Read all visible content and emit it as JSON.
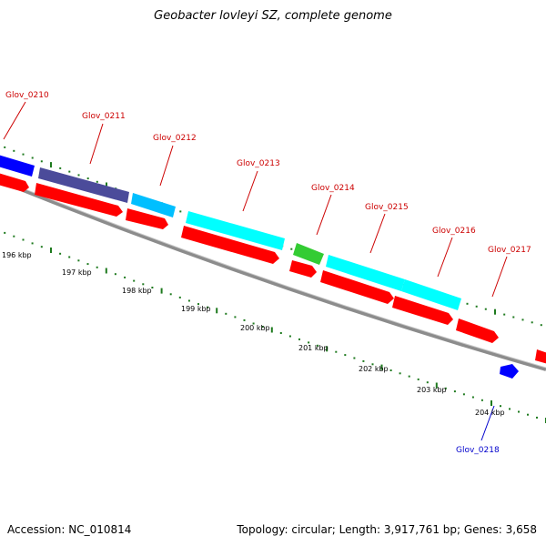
{
  "title": "Geobacter lovleyi SZ, complete genome",
  "footer": {
    "accession": "Accession: NC_010814",
    "topology": "Topology: circular; Length: 3,917,761 bp; Genes: 3,658"
  },
  "colors": {
    "background": "#ffffff",
    "backbone": "#8c8c8c",
    "tick": "#1e7a1e",
    "cds": "#ff0000",
    "label_forward": "#cc0000",
    "label_reverse": "#0000cc"
  },
  "gene_labels": [
    {
      "name": "Glov_0210",
      "strand": "forward"
    },
    {
      "name": "Glov_0211",
      "strand": "forward"
    },
    {
      "name": "Glov_0212",
      "strand": "forward"
    },
    {
      "name": "Glov_0213",
      "strand": "forward"
    },
    {
      "name": "Glov_0214",
      "strand": "forward"
    },
    {
      "name": "Glov_0215",
      "strand": "forward"
    },
    {
      "name": "Glov_0216",
      "strand": "forward"
    },
    {
      "name": "Glov_0217",
      "strand": "forward"
    },
    {
      "name": "Glov_0218",
      "strand": "reverse"
    }
  ],
  "scale_labels": [
    "196 kbp",
    "197 kbp",
    "198 kbp",
    "199 kbp",
    "200 kbp",
    "201 kbp",
    "202 kbp",
    "203 kbp",
    "204 kbp"
  ],
  "feature_colors": {
    "Glov_0210": "#0000ff",
    "Glov_0211": "#4b4b9a",
    "Glov_0212": "#00bfff",
    "Glov_0213": "#00ffff",
    "Glov_0214": "#33cc33",
    "Glov_0215": "#00ffff",
    "Glov_0216": "#00ffff",
    "Glov_0217": "#ff0000",
    "Glov_0218": "#0000ff"
  }
}
